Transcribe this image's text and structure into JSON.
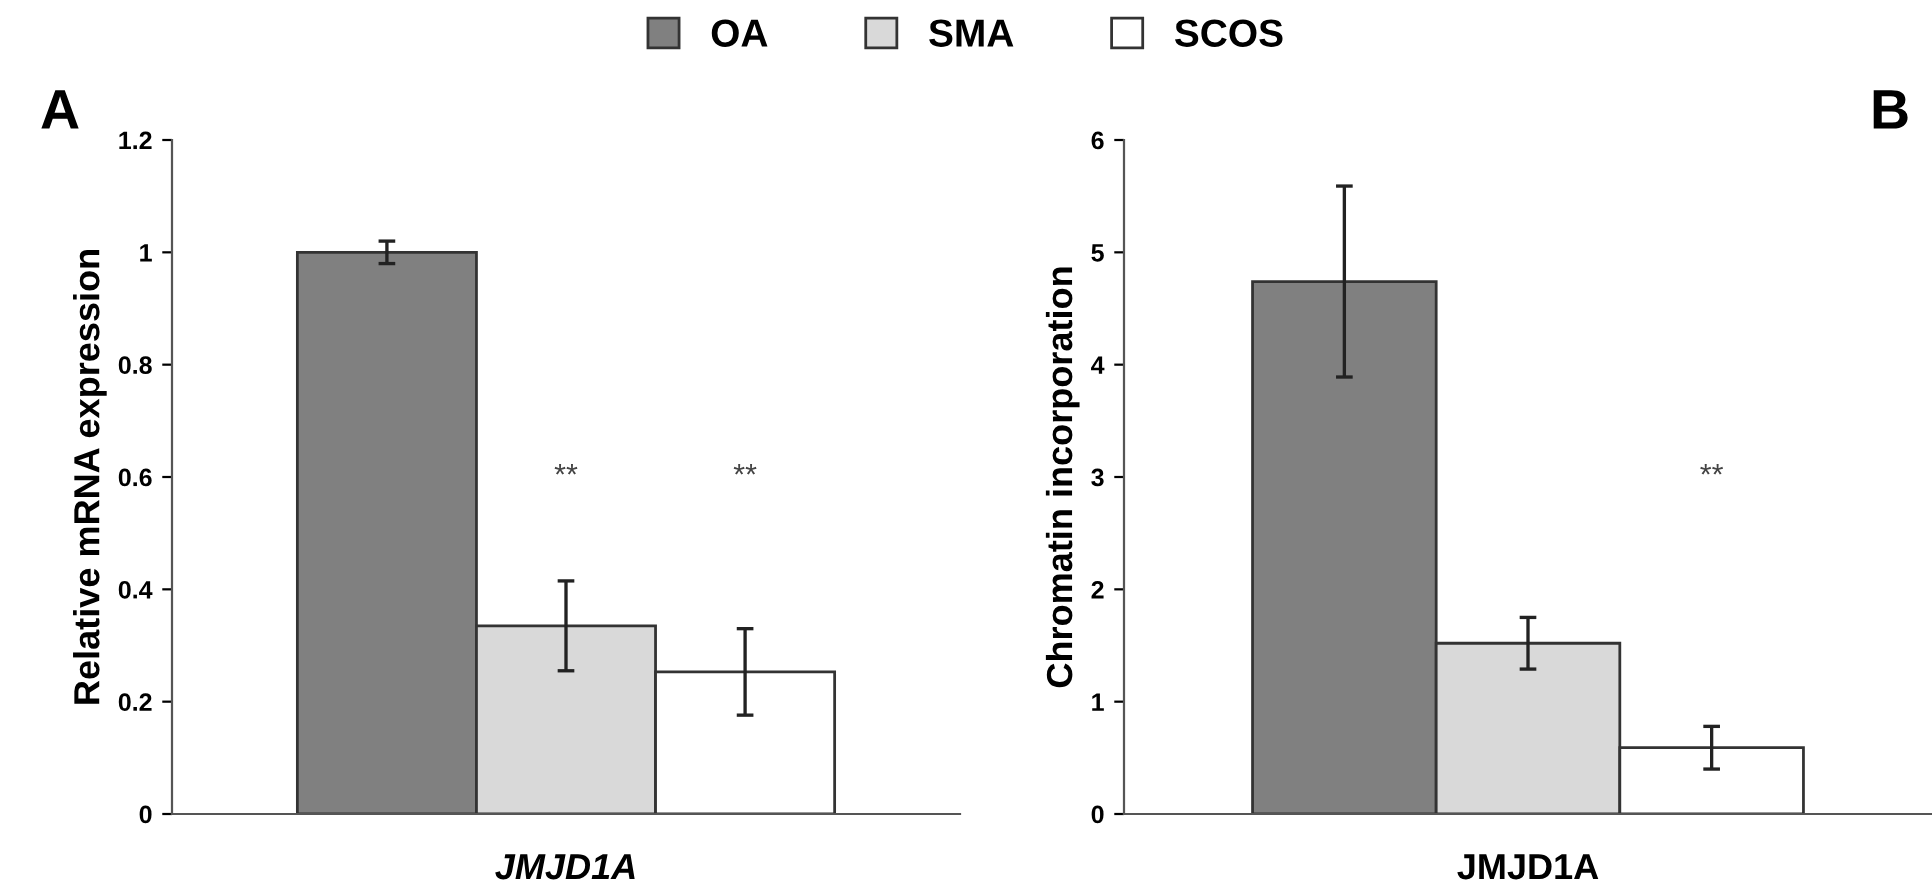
{
  "chart_data": [
    {
      "type": "bar",
      "categories": [
        "JMJD1A"
      ],
      "ylabel": "Relative mRNA expression",
      "ylim": [
        0,
        1.2
      ],
      "yticks": [
        0,
        0.2,
        0.4,
        0.6,
        0.8,
        1,
        1.2
      ],
      "legend": "top",
      "grid": false,
      "series": [
        {
          "name": "OA",
          "color": "#808080",
          "values": [
            1.0
          ],
          "errors": [
            0.02
          ]
        },
        {
          "name": "SMA",
          "color": "#d9d9d9",
          "values": [
            0.335
          ],
          "errors": [
            0.08
          ]
        },
        {
          "name": "SCOS",
          "color": "#ffffff",
          "values": [
            0.253
          ],
          "errors": [
            0.077
          ]
        }
      ],
      "annotations": [
        "A",
        "**",
        "**"
      ]
    },
    {
      "type": "bar",
      "categories": [
        "JMJD1A"
      ],
      "ylabel": "Chromatin incorporation",
      "ylim": [
        0,
        6
      ],
      "yticks": [
        0,
        1,
        2,
        3,
        4,
        5,
        6
      ],
      "grid": false,
      "series": [
        {
          "color": "#808080",
          "values": [
            4.74
          ],
          "errors": [
            0.85
          ]
        },
        {
          "color": "#d9d9d9",
          "values": [
            1.52
          ],
          "errors": [
            0.23
          ]
        },
        {
          "color": "#ffffff",
          "values": [
            0.59
          ],
          "errors": [
            0.19
          ]
        }
      ],
      "annotations": [
        "B",
        "**"
      ]
    }
  ]
}
